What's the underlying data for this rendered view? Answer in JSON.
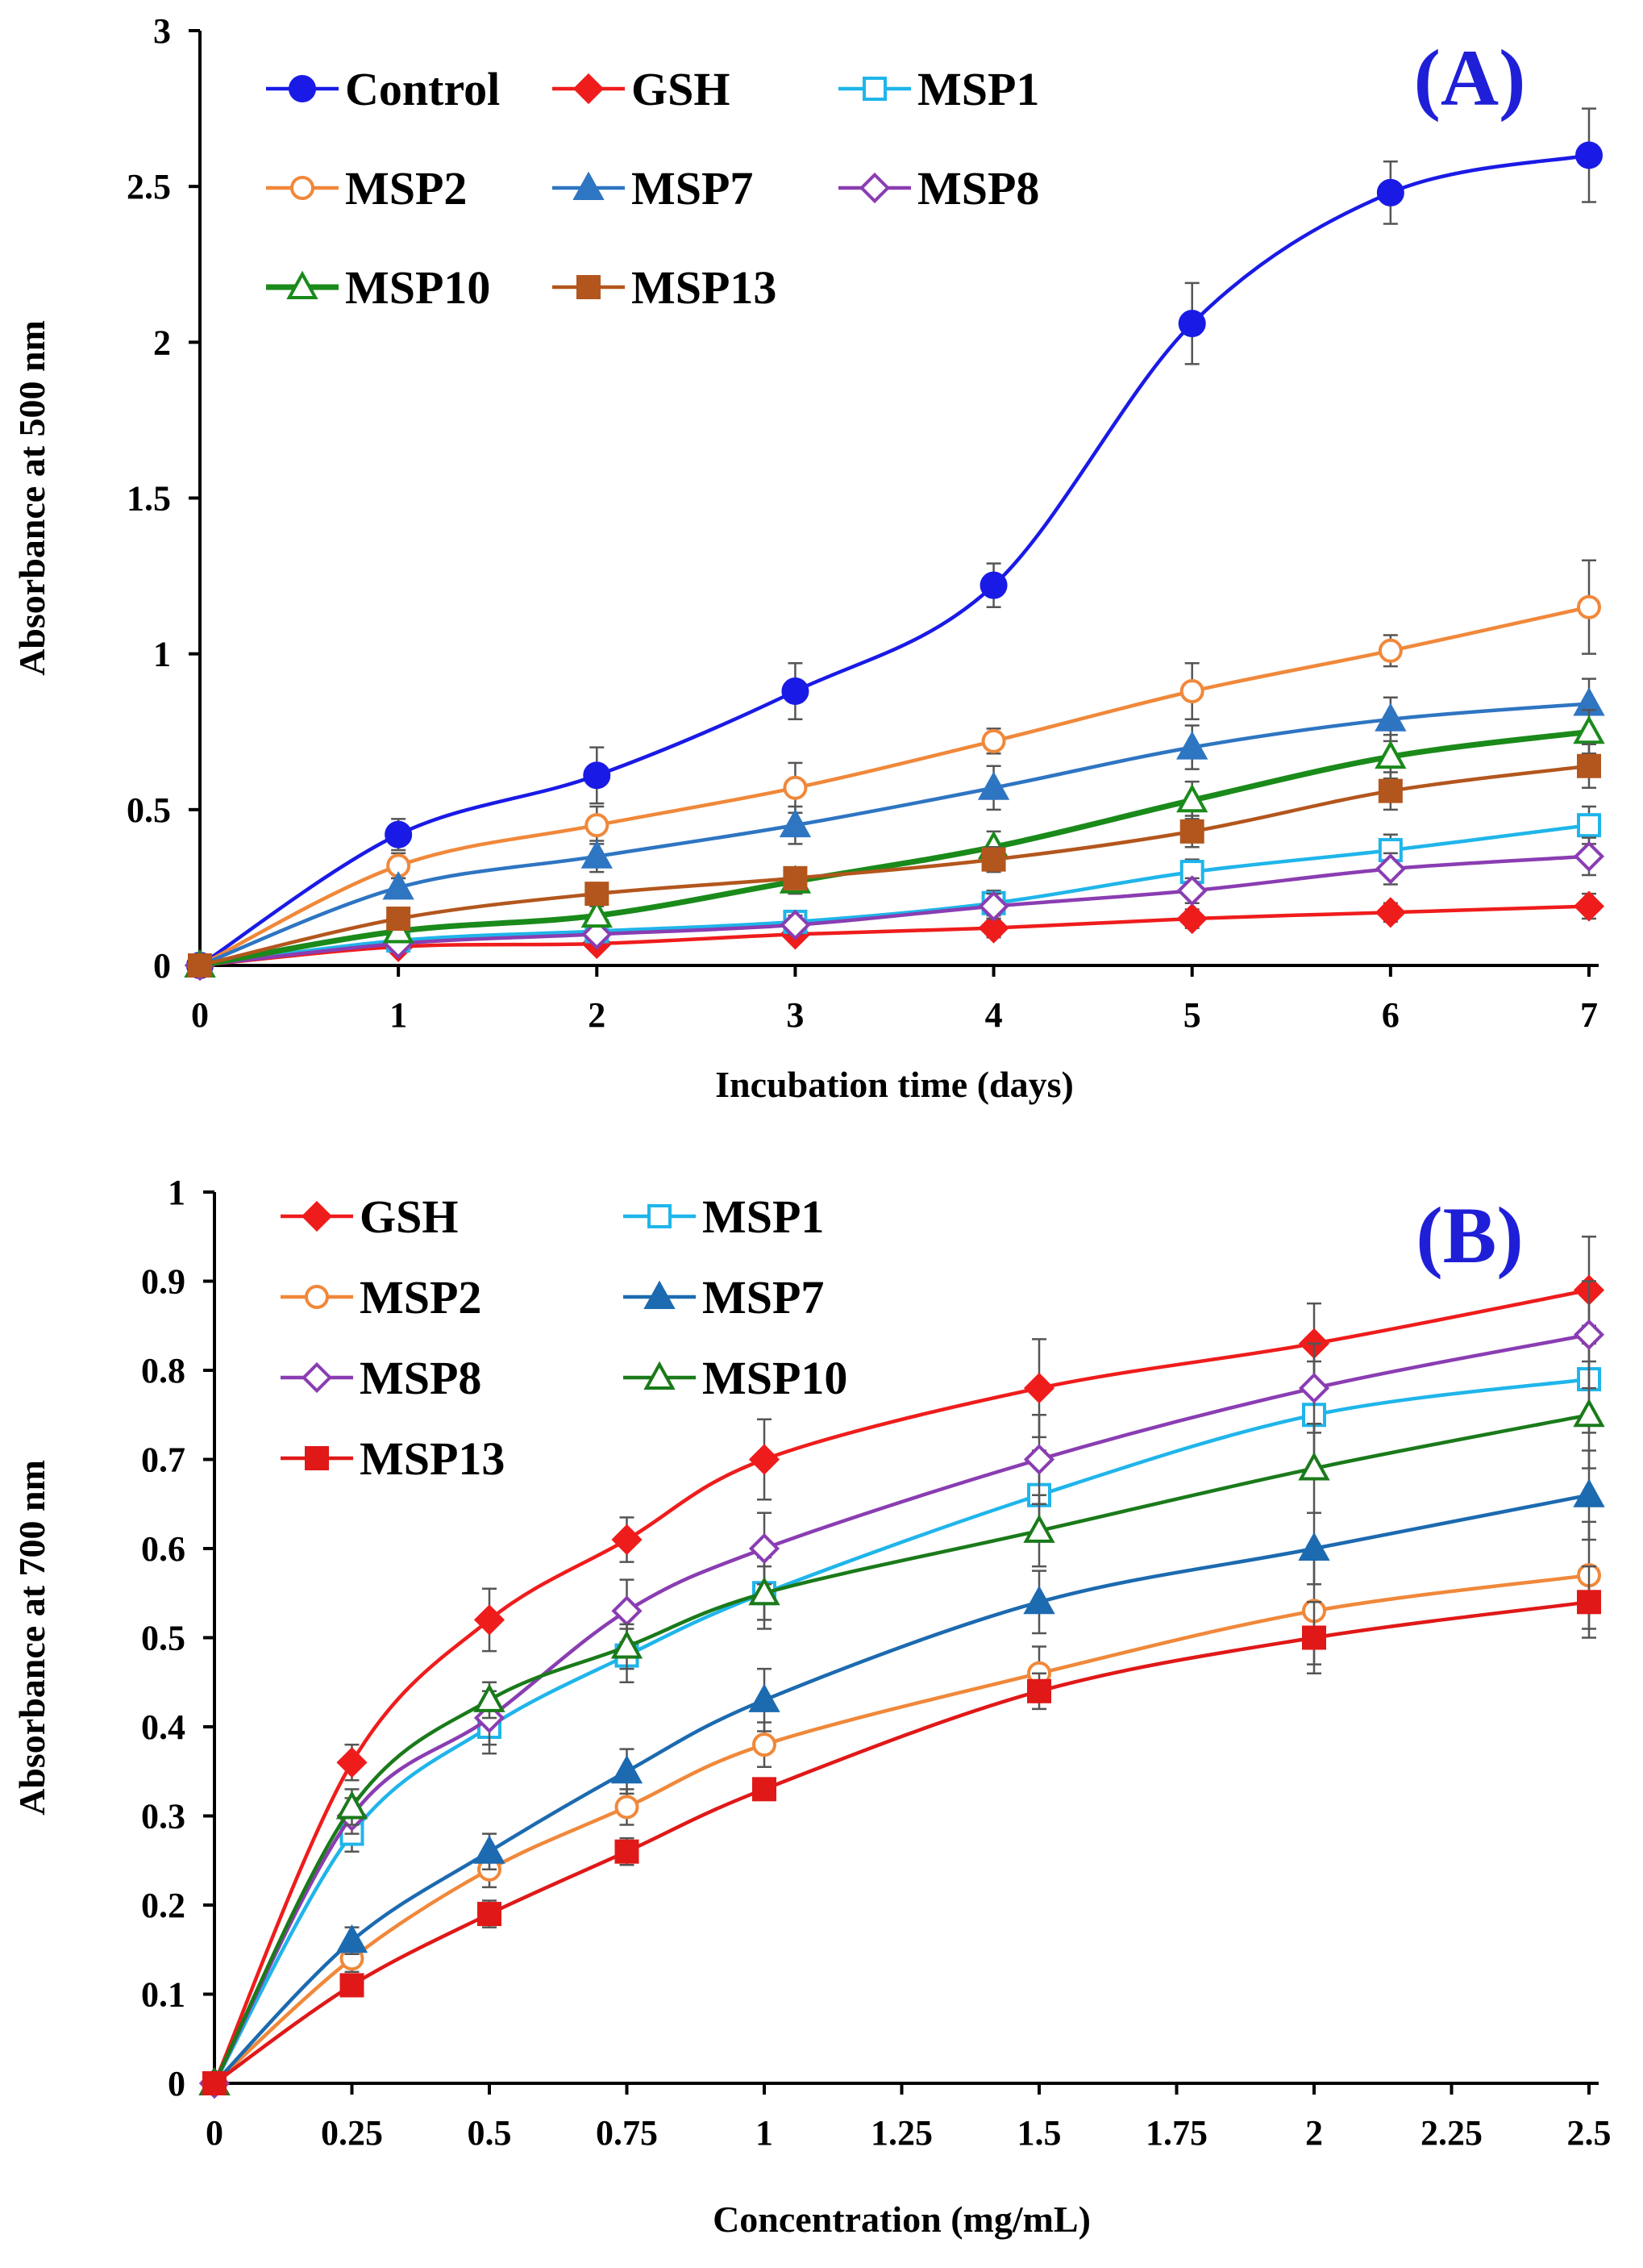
{
  "chart_data": [
    {
      "type": "line",
      "panel_label": "(A)",
      "xlabel": "Incubation time (days)",
      "ylabel": "Absorbance at 500 nm",
      "x": [
        0,
        1,
        2,
        3,
        4,
        5,
        6,
        7
      ],
      "x_ticks": [
        "0",
        "1",
        "2",
        "3",
        "4",
        "5",
        "6",
        "7"
      ],
      "y_ticks": [
        "0",
        "0.5",
        "1",
        "1.5",
        "2",
        "2.5",
        "3"
      ],
      "xlim": [
        0,
        7
      ],
      "ylim": [
        0,
        3
      ],
      "legend_placement": "top-left",
      "grid": false,
      "series": [
        {
          "name": "Control",
          "color": "#1a1ae6",
          "marker": "circle-filled",
          "values": [
            0,
            0.42,
            0.61,
            0.88,
            1.22,
            2.06,
            2.48,
            2.6
          ],
          "errors": [
            0,
            0.05,
            0.09,
            0.09,
            0.07,
            0.13,
            0.1,
            0.15
          ]
        },
        {
          "name": "GSH",
          "color": "#ef1c1c",
          "marker": "diamond-filled",
          "values": [
            0,
            0.06,
            0.07,
            0.1,
            0.12,
            0.15,
            0.17,
            0.19
          ],
          "errors": [
            0,
            0.01,
            0.02,
            0.02,
            0.03,
            0.03,
            0.03,
            0.04
          ]
        },
        {
          "name": "MSP1",
          "color": "#1fb5ea",
          "marker": "square-open",
          "values": [
            0,
            0.08,
            0.11,
            0.14,
            0.2,
            0.3,
            0.37,
            0.45
          ],
          "errors": [
            0,
            0.02,
            0.03,
            0.03,
            0.04,
            0.04,
            0.05,
            0.06
          ]
        },
        {
          "name": "MSP2",
          "color": "#f0883a",
          "marker": "circle-open",
          "values": [
            0,
            0.32,
            0.45,
            0.57,
            0.72,
            0.88,
            1.01,
            1.15
          ],
          "errors": [
            0,
            0.04,
            0.06,
            0.08,
            0.04,
            0.09,
            0.05,
            0.15
          ]
        },
        {
          "name": "MSP7",
          "color": "#2e75c2",
          "marker": "triangle-filled",
          "values": [
            0,
            0.25,
            0.35,
            0.45,
            0.57,
            0.7,
            0.79,
            0.84
          ],
          "errors": [
            0,
            0.03,
            0.05,
            0.06,
            0.07,
            0.07,
            0.07,
            0.08
          ]
        },
        {
          "name": "MSP8",
          "color": "#8a3db2",
          "marker": "diamond-open",
          "values": [
            0,
            0.07,
            0.1,
            0.13,
            0.19,
            0.24,
            0.31,
            0.35
          ],
          "errors": [
            0,
            0.02,
            0.02,
            0.03,
            0.04,
            0.04,
            0.05,
            0.06
          ]
        },
        {
          "name": "MSP10",
          "color": "#1a8a1a",
          "marker": "triangle-open",
          "values": [
            0,
            0.11,
            0.16,
            0.27,
            0.38,
            0.53,
            0.67,
            0.75
          ],
          "errors": [
            0,
            0.02,
            0.03,
            0.04,
            0.05,
            0.06,
            0.07,
            0.07
          ]
        },
        {
          "name": "MSP13",
          "color": "#b3561d",
          "marker": "square-filled",
          "values": [
            0,
            0.15,
            0.23,
            0.28,
            0.34,
            0.43,
            0.56,
            0.64
          ],
          "errors": [
            0,
            0.02,
            0.03,
            0.03,
            0.04,
            0.05,
            0.06,
            0.07
          ]
        }
      ]
    },
    {
      "type": "line",
      "panel_label": "(B)",
      "xlabel": "Concentration (mg/mL)",
      "ylabel": "Absorbance at 700 nm",
      "x": [
        0,
        0.25,
        0.5,
        0.75,
        1,
        1.5,
        2,
        2.5
      ],
      "x_ticks": [
        "0",
        "0.25",
        "0.5",
        "0.75",
        "1",
        "1.25",
        "1.5",
        "1.75",
        "2",
        "2.25",
        "2.5"
      ],
      "y_ticks": [
        "0",
        "0.1",
        "0.2",
        "0.3",
        "0.4",
        "0.5",
        "0.6",
        "0.7",
        "0.8",
        "0.9",
        "1"
      ],
      "xlim": [
        0,
        2.5
      ],
      "ylim": [
        0,
        1
      ],
      "legend_placement": "top-left",
      "grid": false,
      "series": [
        {
          "name": "GSH",
          "color": "#ef1c1c",
          "marker": "diamond-filled",
          "values": [
            0,
            0.36,
            0.52,
            0.61,
            0.7,
            0.78,
            0.83,
            0.89
          ],
          "errors": [
            0,
            0.02,
            0.035,
            0.025,
            0.045,
            0.055,
            0.045,
            0.06
          ]
        },
        {
          "name": "MSP1",
          "color": "#1fb5ea",
          "marker": "square-open",
          "values": [
            0,
            0.28,
            0.4,
            0.48,
            0.55,
            0.66,
            0.75,
            0.79
          ],
          "errors": [
            0,
            0.02,
            0.03,
            0.03,
            0.04,
            0.05,
            0.06,
            0.06
          ]
        },
        {
          "name": "MSP2",
          "color": "#f0883a",
          "marker": "circle-open",
          "values": [
            0,
            0.14,
            0.24,
            0.31,
            0.38,
            0.46,
            0.53,
            0.57
          ],
          "errors": [
            0,
            0.015,
            0.02,
            0.02,
            0.025,
            0.03,
            0.06,
            0.06
          ]
        },
        {
          "name": "MSP7",
          "color": "#1c6ab0",
          "marker": "triangle-filled",
          "values": [
            0,
            0.16,
            0.26,
            0.35,
            0.43,
            0.54,
            0.6,
            0.66
          ],
          "errors": [
            0,
            0.015,
            0.02,
            0.025,
            0.035,
            0.035,
            0.04,
            0.05
          ]
        },
        {
          "name": "MSP8",
          "color": "#8a3db2",
          "marker": "diamond-open",
          "values": [
            0,
            0.3,
            0.41,
            0.53,
            0.6,
            0.7,
            0.78,
            0.84
          ],
          "errors": [
            0,
            0.02,
            0.03,
            0.035,
            0.04,
            0.05,
            0.05,
            0.06
          ]
        },
        {
          "name": "MSP10",
          "color": "#1a7a1a",
          "marker": "triangle-open",
          "values": [
            0,
            0.31,
            0.43,
            0.49,
            0.55,
            0.62,
            0.69,
            0.75
          ],
          "errors": [
            0,
            0.02,
            0.02,
            0.025,
            0.03,
            0.04,
            0.05,
            0.06
          ]
        },
        {
          "name": "MSP13",
          "color": "#e01818",
          "marker": "square-filled",
          "values": [
            0,
            0.11,
            0.19,
            0.26,
            0.33,
            0.44,
            0.5,
            0.54
          ],
          "errors": [
            0,
            0.01,
            0.015,
            0.015,
            0.01,
            0.02,
            0.04,
            0.04
          ]
        }
      ]
    }
  ]
}
